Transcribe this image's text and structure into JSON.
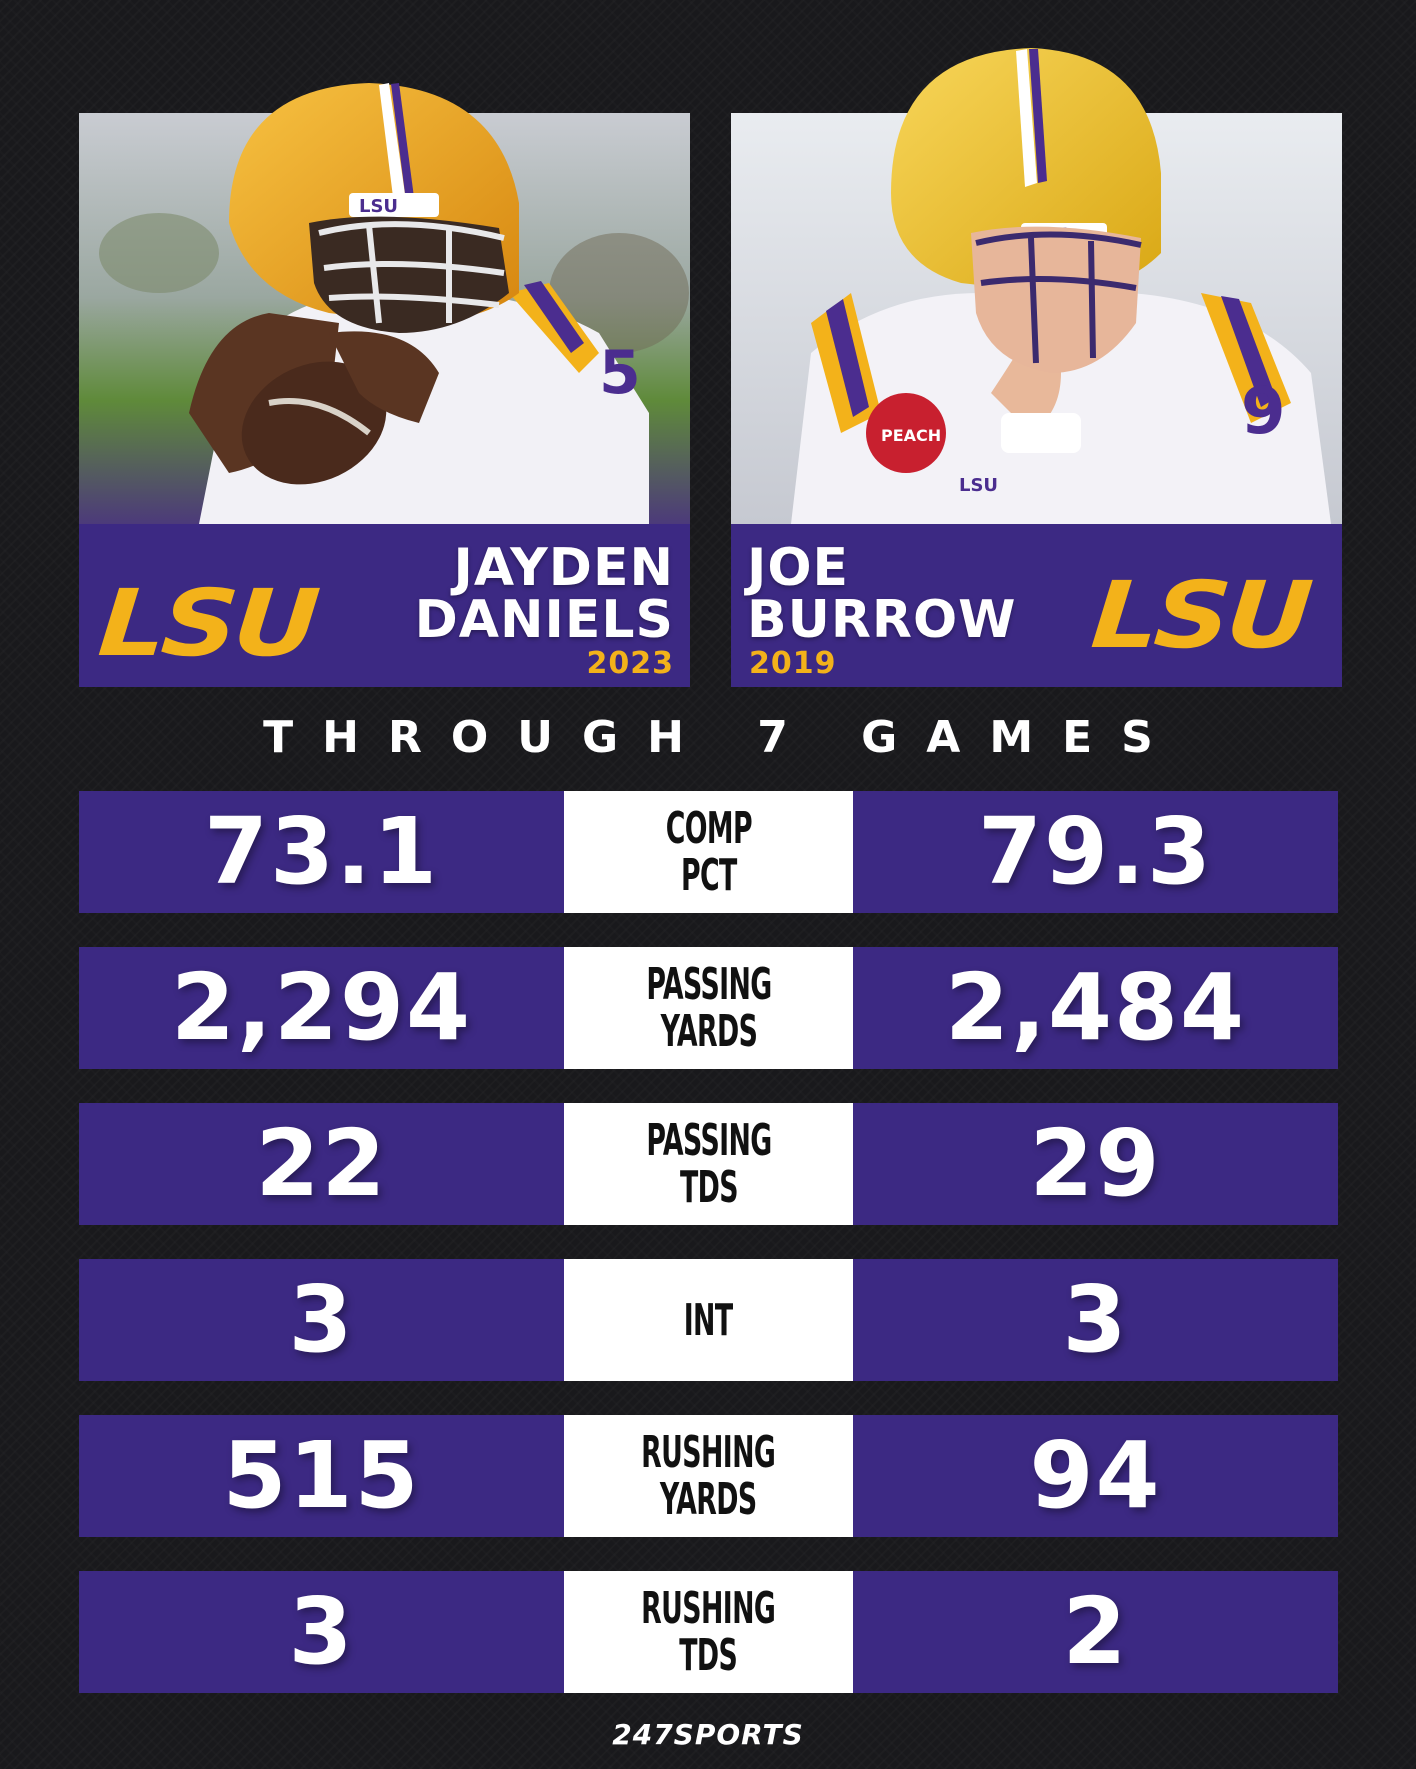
{
  "players": {
    "left": {
      "school": "LSU",
      "first": "JAYDEN",
      "last": "DANIELS",
      "year": "2023",
      "jersey": "5"
    },
    "right": {
      "school": "LSU",
      "first": "JOE",
      "last": "BURROW",
      "year": "2019",
      "jersey": "9"
    }
  },
  "subtitle": "THROUGH 7 GAMES",
  "stats": [
    {
      "label1": "COMP",
      "label2": "PCT",
      "left": "73.1",
      "right": "79.3"
    },
    {
      "label1": "PASSING",
      "label2": "YARDS",
      "left": "2,294",
      "right": "2,484"
    },
    {
      "label1": "PASSING",
      "label2": "TDS",
      "left": "22",
      "right": "29"
    },
    {
      "label1": "INT",
      "label2": "",
      "left": "3",
      "right": "3"
    },
    {
      "label1": "RUSHING",
      "label2": "YARDS",
      "left": "515",
      "right": "94"
    },
    {
      "label1": "RUSHING",
      "label2": "TDS",
      "left": "3",
      "right": "2"
    }
  ],
  "brand": "247SPORTS",
  "colors": {
    "purple": "#3c2983",
    "gold": "#f3b21a",
    "background": "#19191c",
    "white": "#ffffff"
  }
}
